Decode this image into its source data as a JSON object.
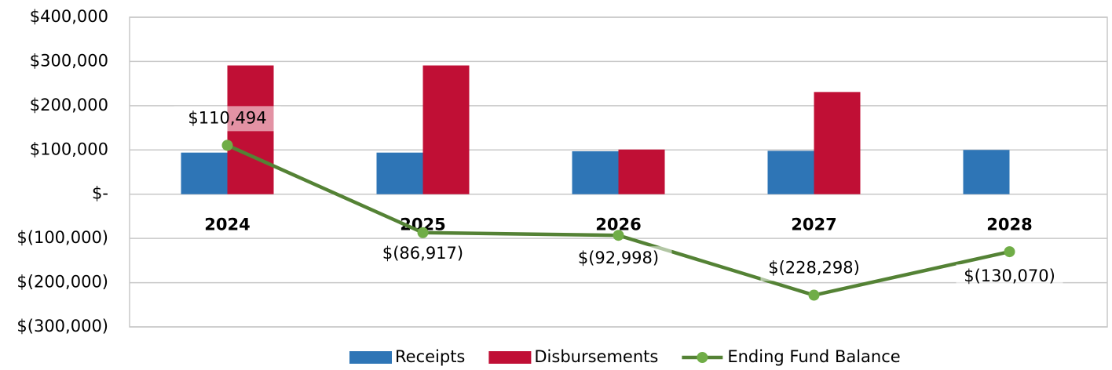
{
  "chart_data": {
    "type": "bar_line",
    "categories": [
      "2024",
      "2025",
      "2026",
      "2027",
      "2028"
    ],
    "series": [
      {
        "name": "Receipts",
        "type": "bar",
        "color": "#2e75b6",
        "values": [
          94000,
          94000,
          97000,
          98000,
          100000
        ]
      },
      {
        "name": "Disbursements",
        "type": "bar",
        "color": "#c00f35",
        "values": [
          291000,
          291000,
          101000,
          231000,
          0
        ]
      },
      {
        "name": "Ending Fund Balance",
        "type": "line",
        "color": "#548235",
        "marker_color": "#70ad47",
        "values": [
          110494,
          -86917,
          -92998,
          -228298,
          -130070
        ],
        "value_labels": [
          "$110,494",
          "$(86,917)",
          "$(92,998)",
          "$(228,298)",
          "$(130,070)"
        ]
      }
    ],
    "ylim": [
      -300000,
      400000
    ],
    "yticks": [
      {
        "value": -300000,
        "label": "$(300,000)"
      },
      {
        "value": -200000,
        "label": "$(200,000)"
      },
      {
        "value": -100000,
        "label": "$(100,000)"
      },
      {
        "value": 0,
        "label": "$-"
      },
      {
        "value": 100000,
        "label": "$100,000"
      },
      {
        "value": 200000,
        "label": "$200,000"
      },
      {
        "value": 300000,
        "label": "$300,000"
      },
      {
        "value": 400000,
        "label": "$400,000"
      }
    ],
    "grid": true,
    "legend": "bottom"
  }
}
